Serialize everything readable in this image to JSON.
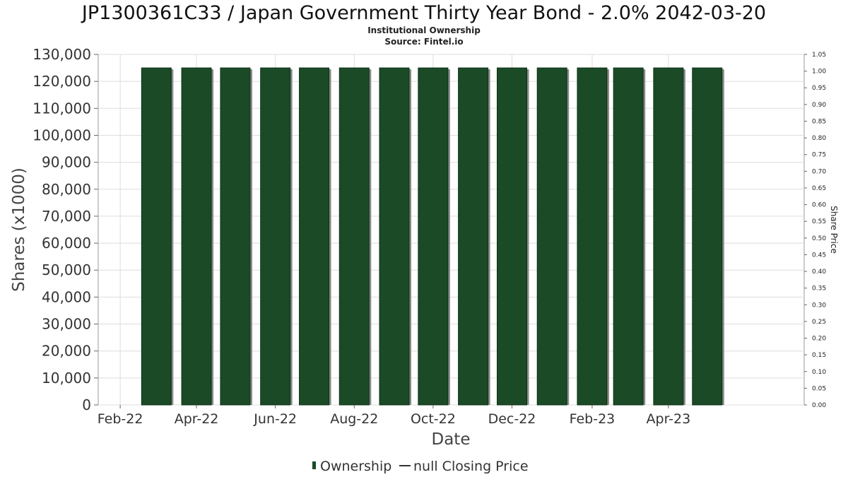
{
  "chart_data": {
    "type": "bar",
    "title": "JP1300361C33 / Japan Government Thirty Year Bond - 2.0% 2042-03-20",
    "subtitle_lines": [
      "Institutional Ownership",
      "Source: Fintel.io"
    ],
    "xlabel": "Date",
    "ylabel": "Shares (x1000)",
    "y2label": "Share Price",
    "x_tick_labels": [
      "Feb-22",
      "Apr-22",
      "Jun-22",
      "Aug-22",
      "Oct-22",
      "Dec-22",
      "Feb-23",
      "Apr-23"
    ],
    "y_ticks": [
      "0",
      "10,000",
      "20,000",
      "30,000",
      "40,000",
      "50,000",
      "60,000",
      "70,000",
      "80,000",
      "90,000",
      "100,000",
      "110,000",
      "120,000",
      "130,000"
    ],
    "y2_ticks": [
      "0.00",
      "0.05",
      "0.10",
      "0.15",
      "0.20",
      "0.25",
      "0.30",
      "0.35",
      "0.40",
      "0.45",
      "0.50",
      "0.55",
      "0.60",
      "0.65",
      "0.70",
      "0.75",
      "0.80",
      "0.85",
      "0.90",
      "0.95",
      "1.00",
      "1.05"
    ],
    "ylim": [
      0,
      130000
    ],
    "y2lim": [
      0,
      1.05
    ],
    "xlim": [
      "2022-01-15",
      "2023-07-15"
    ],
    "grid": true,
    "legend_position": "bottom-center",
    "colors": {
      "bar": "#1a4a26",
      "bar_shadow": "#8a8a8a",
      "grid": "#dddddd"
    },
    "series": [
      {
        "name": "Ownership",
        "x": [
          "2022-03-01",
          "2022-04-01",
          "2022-05-01",
          "2022-06-01",
          "2022-07-01",
          "2022-08-01",
          "2022-09-01",
          "2022-10-01",
          "2022-11-01",
          "2022-12-01",
          "2023-01-01",
          "2023-02-01",
          "2023-03-01",
          "2023-04-01",
          "2023-05-01"
        ],
        "values": [
          125000,
          125000,
          125000,
          125000,
          125000,
          125000,
          125000,
          125000,
          125000,
          125000,
          125000,
          125000,
          125000,
          125000,
          125000
        ]
      },
      {
        "name": "null Closing Price",
        "x": [],
        "values": []
      }
    ]
  }
}
